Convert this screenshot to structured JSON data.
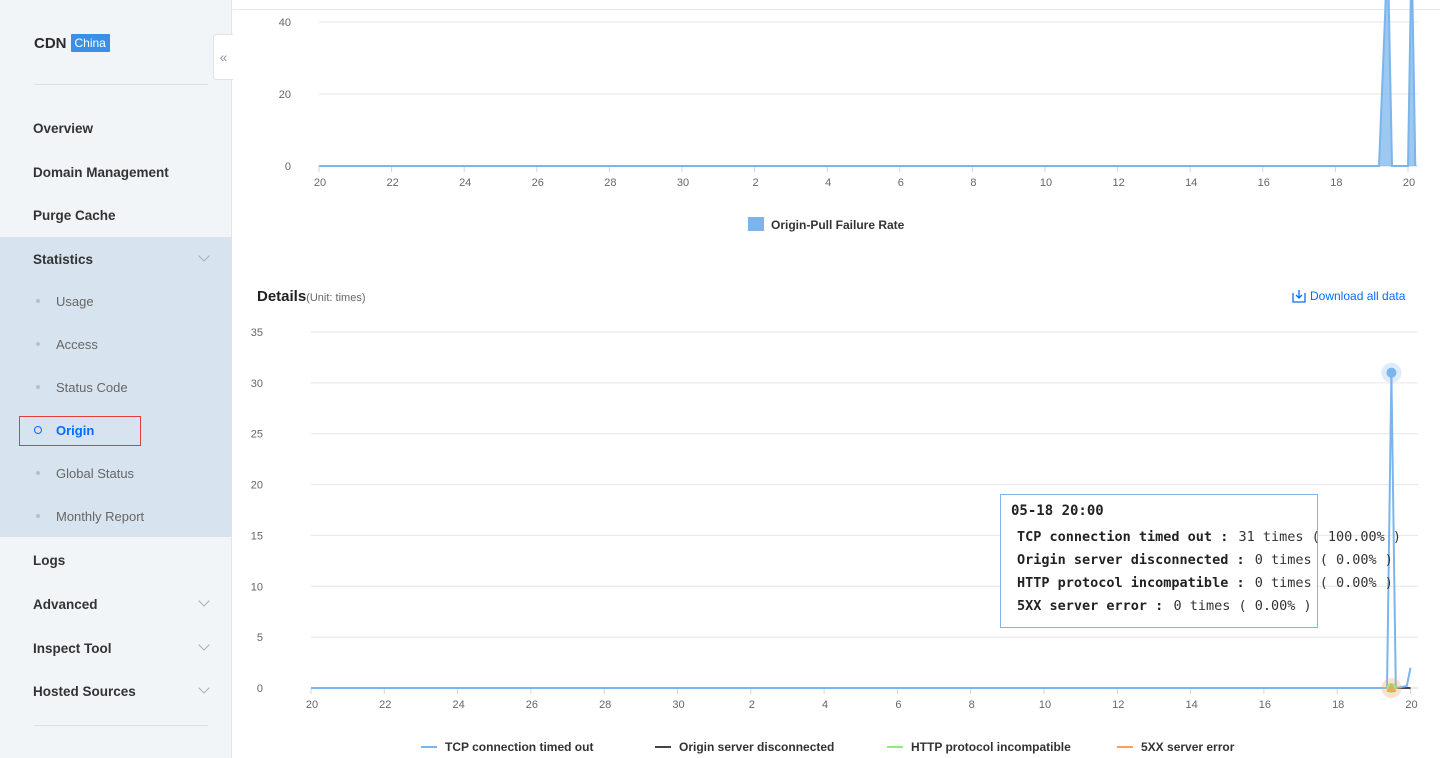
{
  "sidebar": {
    "brand": "CDN",
    "badge": "China",
    "collapse_icon": "«",
    "items": [
      {
        "label": "Overview"
      },
      {
        "label": "Domain Management"
      },
      {
        "label": "Purge Cache"
      },
      {
        "label": "Statistics"
      },
      {
        "label": "Logs"
      },
      {
        "label": "Advanced"
      },
      {
        "label": "Inspect Tool"
      },
      {
        "label": "Hosted Sources"
      }
    ],
    "statistics_sub": [
      {
        "label": "Usage"
      },
      {
        "label": "Access"
      },
      {
        "label": "Status Code"
      },
      {
        "label": "Origin"
      },
      {
        "label": "Global Status"
      },
      {
        "label": "Monthly Report"
      }
    ]
  },
  "details": {
    "title": "Details",
    "unit": "(Unit: times)",
    "download": "Download all data"
  },
  "tooltip": {
    "time": "05-18 20:00",
    "rows": [
      {
        "name": "TCP connection timed out",
        "value": "31 times ( 100.00% )",
        "color": "#7cb5ec"
      },
      {
        "name": "Origin server disconnected",
        "value": "0 times ( 0.00% )",
        "color": "#434348"
      },
      {
        "name": "HTTP protocol incompatible",
        "value": "0 times ( 0.00% )",
        "color": "#90ed7d"
      },
      {
        "name": "5XX server error",
        "value": "0 times ( 0.00% )",
        "color": "#f7a35c"
      }
    ]
  },
  "chart_data": [
    {
      "type": "area",
      "x_tick_labels": [
        "20",
        "22",
        "24",
        "26",
        "28",
        "30",
        "2",
        "4",
        "6",
        "8",
        "10",
        "12",
        "14",
        "16",
        "18",
        "20"
      ],
      "y_ticks": [
        0,
        20,
        40
      ],
      "series": [
        {
          "name": "Origin-Pull Failure Rate",
          "color": "#7cb5ec",
          "points": [
            [
              0,
              0
            ],
            [
              14.6,
              0
            ],
            [
              14.72,
              60
            ],
            [
              14.78,
              0
            ],
            [
              15.0,
              0
            ],
            [
              15.05,
              60
            ],
            [
              15.1,
              0
            ]
          ]
        }
      ]
    },
    {
      "type": "line",
      "x_tick_labels": [
        "20",
        "22",
        "24",
        "26",
        "28",
        "30",
        "2",
        "4",
        "6",
        "8",
        "10",
        "12",
        "14",
        "16",
        "18",
        "20"
      ],
      "y_ticks": [
        0,
        5,
        10,
        15,
        20,
        25,
        30,
        35
      ],
      "series": [
        {
          "name": "TCP connection timed out",
          "color": "#7cb5ec",
          "points": [
            [
              0,
              0
            ],
            [
              14.68,
              0
            ],
            [
              14.74,
              31
            ],
            [
              14.8,
              0
            ],
            [
              14.95,
              0.2
            ],
            [
              15.0,
              2
            ]
          ]
        },
        {
          "name": "Origin server disconnected",
          "color": "#434348",
          "points": [
            [
              0,
              0
            ],
            [
              15.0,
              0
            ]
          ]
        },
        {
          "name": "HTTP protocol incompatible",
          "color": "#90ed7d",
          "points": [
            [
              0,
              0
            ],
            [
              15.0,
              0
            ]
          ]
        },
        {
          "name": "5XX server error",
          "color": "#f7a35c",
          "points": [
            [
              0,
              0
            ],
            [
              15.0,
              0
            ]
          ]
        }
      ],
      "highlight_x": 14.74
    }
  ]
}
